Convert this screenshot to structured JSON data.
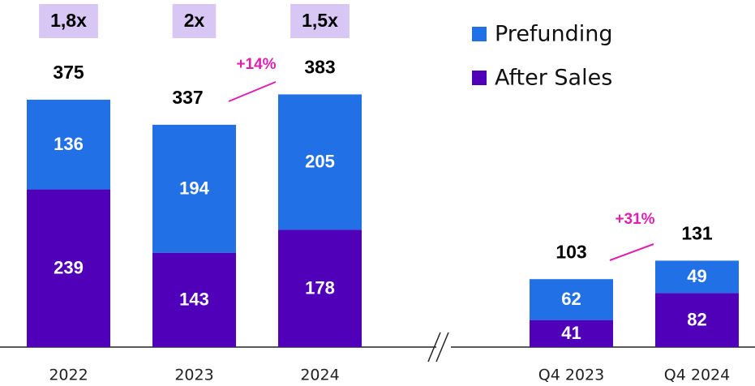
{
  "chart_data": {
    "type": "bar",
    "stacked": true,
    "categories": [
      "2022",
      "2023",
      "2024",
      "Q4 2023",
      "Q4 2024"
    ],
    "series": [
      {
        "name": "After Sales",
        "color": "#5000b9",
        "values": [
          239,
          143,
          178,
          41,
          82
        ]
      },
      {
        "name": "Prefunding",
        "color": "#2270e6",
        "values": [
          136,
          194,
          205,
          62,
          49
        ]
      }
    ],
    "totals": [
      375,
      337,
      383,
      103,
      131
    ],
    "multipliers": [
      "1,8x",
      "2x",
      "1,5x"
    ],
    "annotations": [
      "+14%",
      "+31%"
    ]
  }
}
